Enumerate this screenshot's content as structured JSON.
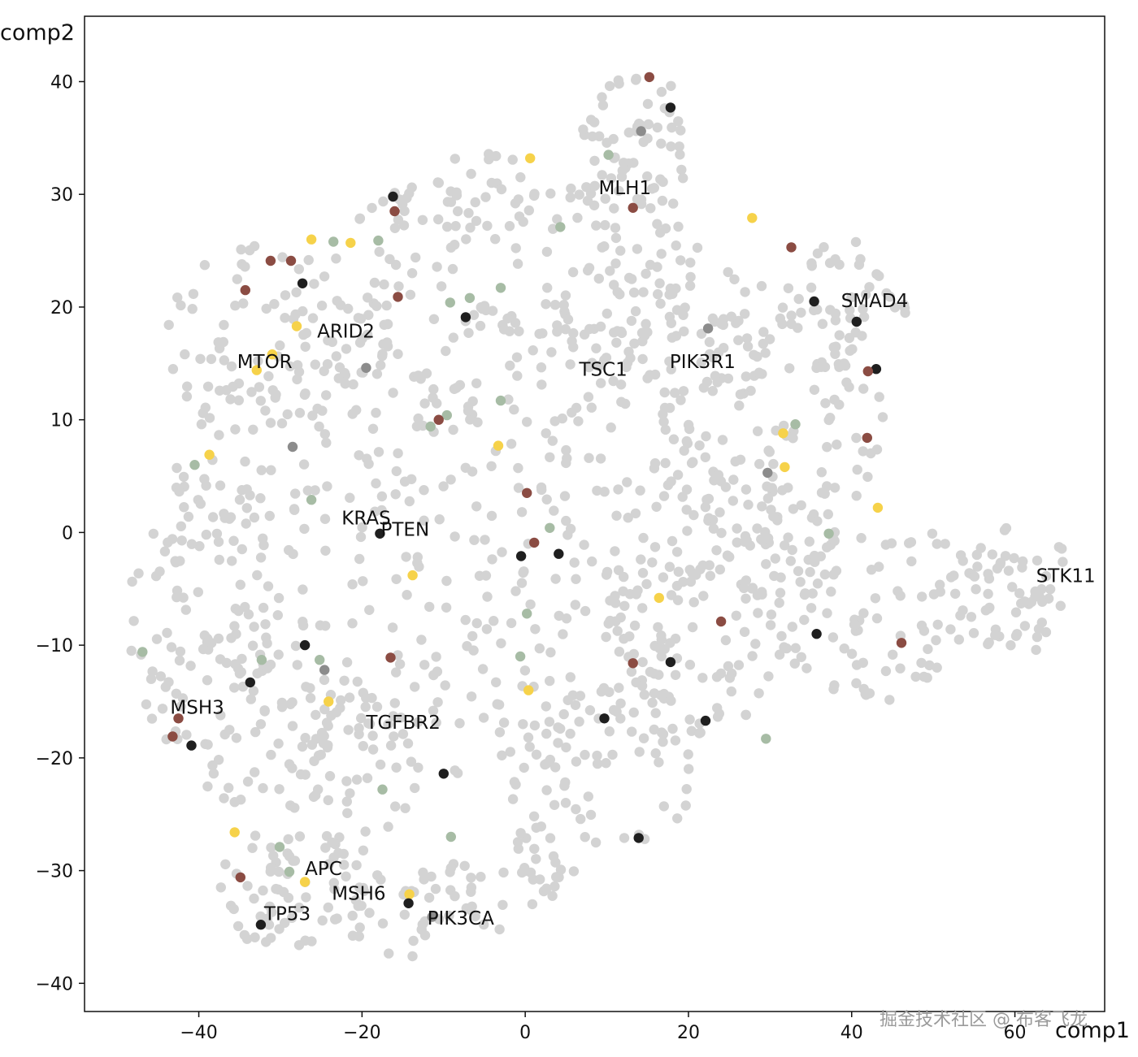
{
  "chart_data": {
    "type": "scatter",
    "xlabel": "comp1",
    "ylabel": "comp2",
    "xlim": [
      -54,
      71
    ],
    "ylim": [
      -42.5,
      45.8
    ],
    "x_ticks": [
      -40,
      -20,
      0,
      20,
      40,
      60
    ],
    "y_ticks": [
      -40,
      -30,
      -20,
      -10,
      0,
      10,
      20,
      30,
      40
    ],
    "tick_labels_x": [
      "−40",
      "−20",
      "0",
      "20",
      "40",
      "60"
    ],
    "tick_labels_y": [
      "−40",
      "−30",
      "−20",
      "−10",
      "0",
      "10",
      "20",
      "30",
      "40"
    ],
    "grid": false,
    "colors": {
      "background_points": "#d3d3d3",
      "green": "#a7bca5",
      "black": "#1f1f1f",
      "brown": "#8b4c43",
      "yellow": "#f6d24a",
      "gray": "#8c8c8c"
    },
    "highlighted_points": [
      {
        "x": 15.2,
        "y": 40.4,
        "color": "brown"
      },
      {
        "x": 17.8,
        "y": 37.7,
        "color": "black"
      },
      {
        "x": 14.2,
        "y": 35.6,
        "color": "gray"
      },
      {
        "x": 10.2,
        "y": 33.5,
        "color": "green"
      },
      {
        "x": 0.6,
        "y": 33.2,
        "color": "yellow"
      },
      {
        "x": -16.2,
        "y": 29.8,
        "color": "black"
      },
      {
        "x": -16.0,
        "y": 28.5,
        "color": "brown"
      },
      {
        "x": 13.2,
        "y": 28.8,
        "color": "brown"
      },
      {
        "x": 4.3,
        "y": 27.1,
        "color": "green"
      },
      {
        "x": 27.8,
        "y": 27.9,
        "color": "yellow"
      },
      {
        "x": -26.2,
        "y": 26.0,
        "color": "yellow"
      },
      {
        "x": -23.5,
        "y": 25.8,
        "color": "green"
      },
      {
        "x": -21.4,
        "y": 25.7,
        "color": "yellow"
      },
      {
        "x": -18.0,
        "y": 25.9,
        "color": "green"
      },
      {
        "x": 32.6,
        "y": 25.3,
        "color": "brown"
      },
      {
        "x": -31.2,
        "y": 24.1,
        "color": "brown"
      },
      {
        "x": -28.7,
        "y": 24.1,
        "color": "brown"
      },
      {
        "x": -27.3,
        "y": 22.1,
        "color": "black"
      },
      {
        "x": -34.3,
        "y": 21.5,
        "color": "brown"
      },
      {
        "x": -3.0,
        "y": 21.7,
        "color": "green"
      },
      {
        "x": -15.6,
        "y": 20.9,
        "color": "brown"
      },
      {
        "x": -6.8,
        "y": 20.8,
        "color": "green"
      },
      {
        "x": -9.2,
        "y": 20.4,
        "color": "green"
      },
      {
        "x": 35.4,
        "y": 20.5,
        "color": "black"
      },
      {
        "x": -7.3,
        "y": 19.1,
        "color": "black"
      },
      {
        "x": 40.6,
        "y": 18.7,
        "color": "black"
      },
      {
        "x": 22.4,
        "y": 18.1,
        "color": "gray"
      },
      {
        "x": -28.0,
        "y": 18.3,
        "color": "yellow"
      },
      {
        "x": -31.0,
        "y": 15.8,
        "color": "yellow"
      },
      {
        "x": -19.5,
        "y": 14.6,
        "color": "gray"
      },
      {
        "x": -32.9,
        "y": 14.4,
        "color": "yellow"
      },
      {
        "x": 43.0,
        "y": 14.5,
        "color": "black"
      },
      {
        "x": 42.0,
        "y": 14.3,
        "color": "brown"
      },
      {
        "x": -3.0,
        "y": 11.7,
        "color": "green"
      },
      {
        "x": -9.6,
        "y": 10.4,
        "color": "green"
      },
      {
        "x": -10.6,
        "y": 10.0,
        "color": "brown"
      },
      {
        "x": -11.6,
        "y": 9.4,
        "color": "green"
      },
      {
        "x": 33.1,
        "y": 9.6,
        "color": "green"
      },
      {
        "x": 31.6,
        "y": 8.8,
        "color": "yellow"
      },
      {
        "x": 41.9,
        "y": 8.4,
        "color": "brown"
      },
      {
        "x": -28.5,
        "y": 7.6,
        "color": "gray"
      },
      {
        "x": -3.3,
        "y": 7.7,
        "color": "yellow"
      },
      {
        "x": -38.7,
        "y": 6.9,
        "color": "yellow"
      },
      {
        "x": -40.5,
        "y": 6.0,
        "color": "green"
      },
      {
        "x": 31.8,
        "y": 5.8,
        "color": "yellow"
      },
      {
        "x": 29.7,
        "y": 5.3,
        "color": "gray"
      },
      {
        "x": 0.2,
        "y": 3.5,
        "color": "brown"
      },
      {
        "x": -26.2,
        "y": 2.9,
        "color": "green"
      },
      {
        "x": 43.2,
        "y": 2.2,
        "color": "yellow"
      },
      {
        "x": 3.0,
        "y": 0.4,
        "color": "green"
      },
      {
        "x": 37.2,
        "y": -0.1,
        "color": "green"
      },
      {
        "x": -17.8,
        "y": -0.1,
        "color": "black"
      },
      {
        "x": 1.1,
        "y": -0.9,
        "color": "brown"
      },
      {
        "x": -0.5,
        "y": -2.1,
        "color": "black"
      },
      {
        "x": 4.1,
        "y": -1.9,
        "color": "black"
      },
      {
        "x": -13.8,
        "y": -3.8,
        "color": "yellow"
      },
      {
        "x": 16.4,
        "y": -5.8,
        "color": "yellow"
      },
      {
        "x": 0.2,
        "y": -7.2,
        "color": "green"
      },
      {
        "x": 24.0,
        "y": -7.9,
        "color": "brown"
      },
      {
        "x": -46.9,
        "y": -10.6,
        "color": "green"
      },
      {
        "x": 35.7,
        "y": -9.0,
        "color": "black"
      },
      {
        "x": 46.1,
        "y": -9.8,
        "color": "brown"
      },
      {
        "x": -27.0,
        "y": -10.0,
        "color": "black"
      },
      {
        "x": -16.5,
        "y": -11.1,
        "color": "brown"
      },
      {
        "x": -0.6,
        "y": -11.0,
        "color": "green"
      },
      {
        "x": -25.2,
        "y": -11.3,
        "color": "green"
      },
      {
        "x": -32.3,
        "y": -11.3,
        "color": "green"
      },
      {
        "x": 13.2,
        "y": -11.6,
        "color": "brown"
      },
      {
        "x": 17.8,
        "y": -11.5,
        "color": "black"
      },
      {
        "x": -24.6,
        "y": -12.2,
        "color": "gray"
      },
      {
        "x": -33.7,
        "y": -13.3,
        "color": "black"
      },
      {
        "x": 0.4,
        "y": -14.0,
        "color": "yellow"
      },
      {
        "x": -24.1,
        "y": -15.0,
        "color": "yellow"
      },
      {
        "x": -42.5,
        "y": -16.5,
        "color": "brown"
      },
      {
        "x": 9.7,
        "y": -16.5,
        "color": "black"
      },
      {
        "x": 22.1,
        "y": -16.7,
        "color": "black"
      },
      {
        "x": -43.2,
        "y": -18.1,
        "color": "brown"
      },
      {
        "x": -40.9,
        "y": -18.9,
        "color": "black"
      },
      {
        "x": 29.5,
        "y": -18.3,
        "color": "green"
      },
      {
        "x": -10.0,
        "y": -21.4,
        "color": "black"
      },
      {
        "x": -17.5,
        "y": -22.8,
        "color": "green"
      },
      {
        "x": -35.6,
        "y": -26.6,
        "color": "yellow"
      },
      {
        "x": -9.1,
        "y": -27.0,
        "color": "green"
      },
      {
        "x": 13.9,
        "y": -27.1,
        "color": "black"
      },
      {
        "x": -30.1,
        "y": -27.9,
        "color": "green"
      },
      {
        "x": -28.9,
        "y": -30.1,
        "color": "green"
      },
      {
        "x": -34.9,
        "y": -30.6,
        "color": "brown"
      },
      {
        "x": -27.0,
        "y": -31.0,
        "color": "yellow"
      },
      {
        "x": -14.2,
        "y": -32.1,
        "color": "yellow"
      },
      {
        "x": -14.3,
        "y": -32.9,
        "color": "black"
      },
      {
        "x": -11.4,
        "y": -34.1,
        "color": "gray"
      },
      {
        "x": -32.4,
        "y": -34.8,
        "color": "black"
      }
    ],
    "annotations": [
      {
        "text": "MLH1",
        "x": 9.0,
        "y": 30.0
      },
      {
        "text": "SMAD4",
        "x": 38.7,
        "y": 20.0
      },
      {
        "text": "ARID2",
        "x": -25.5,
        "y": 17.3
      },
      {
        "text": "MTOR",
        "x": -35.3,
        "y": 14.6
      },
      {
        "text": "TSC1",
        "x": 6.6,
        "y": 13.9
      },
      {
        "text": "PIK3R1",
        "x": 17.7,
        "y": 14.6
      },
      {
        "text": "KRAS",
        "x": -22.5,
        "y": 0.7
      },
      {
        "text": "PTEN",
        "x": -17.7,
        "y": -0.3
      },
      {
        "text": "STK11",
        "x": 62.6,
        "y": -4.4
      },
      {
        "text": "MSH3",
        "x": -43.5,
        "y": -16.1
      },
      {
        "text": "TGFBR2",
        "x": -19.5,
        "y": -17.4
      },
      {
        "text": "APC",
        "x": -27.0,
        "y": -30.4
      },
      {
        "text": "MSH6",
        "x": -23.7,
        "y": -32.6
      },
      {
        "text": "TP53",
        "x": -32.0,
        "y": -34.4
      },
      {
        "text": "PIK3CA",
        "x": -12.0,
        "y": -34.8
      }
    ]
  },
  "watermark": "掘金技术社区 @ 布客飞龙"
}
